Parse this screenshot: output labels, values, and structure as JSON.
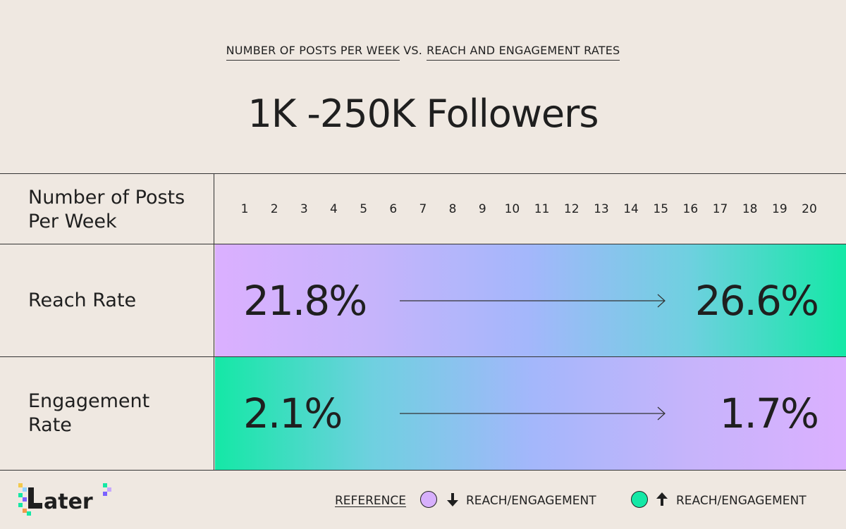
{
  "subtitle": {
    "part1": "NUMBER OF POSTS PER WEEK",
    "part2": "VS.",
    "part3": "REACH AND ENGAGEMENT RATES"
  },
  "title": "1K -250K Followers",
  "table": {
    "header_label": "Number of Posts Per Week",
    "posts_per_week": [
      "1",
      "2",
      "3",
      "4",
      "5",
      "6",
      "7",
      "8",
      "9",
      "10",
      "11",
      "12",
      "13",
      "14",
      "15",
      "16",
      "17",
      "18",
      "19",
      "20"
    ],
    "reach": {
      "label": "Reach Rate",
      "start": "21.8%",
      "end": "26.6%"
    },
    "engagement": {
      "label": "Engagement Rate",
      "start": "2.1%",
      "end": "1.7%"
    }
  },
  "legend": {
    "reference_label": "REFERENCE",
    "down_label": "REACH/ENGAGEMENT",
    "up_label": "REACH/ENGAGEMENT",
    "down_color": "#d7b0fc",
    "up_color": "#14e8a6"
  },
  "logo_text": "Later",
  "colors": {
    "background": "#efe8e1",
    "purple": "#dbb0ff",
    "green": "#14e8a6",
    "blue": "#a3b7fb"
  }
}
